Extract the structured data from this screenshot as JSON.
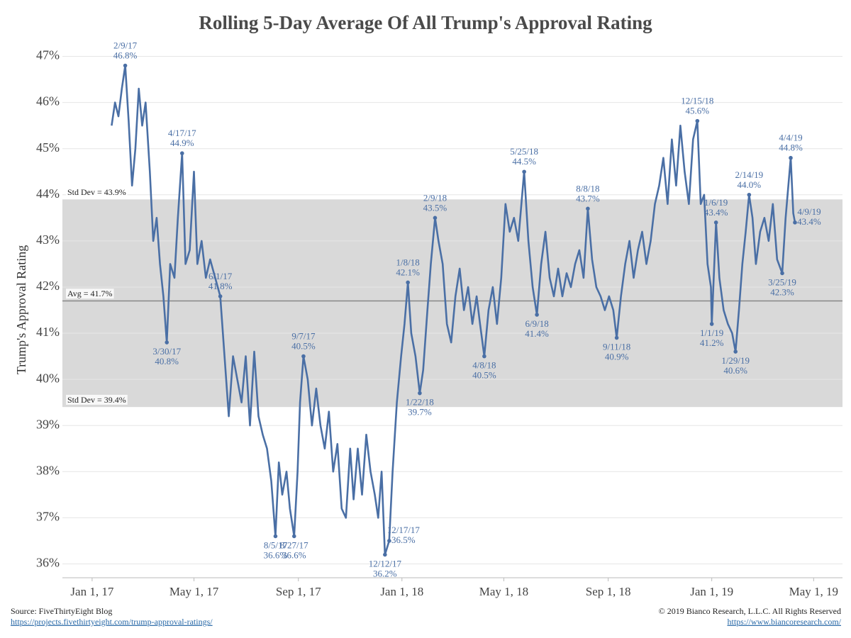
{
  "chart_data": {
    "type": "line",
    "title": "Rolling 5-Day Average Of All Trump's Approval Rating",
    "y_label": "Trump's Approval Rating",
    "color": "#4a6fa5",
    "x": [
      "2017-01-24",
      "2017-01-28",
      "2017-02-01",
      "2017-02-05",
      "2017-02-09",
      "2017-02-13",
      "2017-02-17",
      "2017-02-21",
      "2017-02-25",
      "2017-03-01",
      "2017-03-05",
      "2017-03-10",
      "2017-03-14",
      "2017-03-18",
      "2017-03-22",
      "2017-03-26",
      "2017-03-30",
      "2017-04-03",
      "2017-04-08",
      "2017-04-12",
      "2017-04-17",
      "2017-04-21",
      "2017-04-26",
      "2017-05-01",
      "2017-05-05",
      "2017-05-10",
      "2017-05-15",
      "2017-05-20",
      "2017-06-01",
      "2017-06-06",
      "2017-06-11",
      "2017-06-16",
      "2017-06-21",
      "2017-06-26",
      "2017-07-01",
      "2017-07-06",
      "2017-07-11",
      "2017-07-16",
      "2017-07-21",
      "2017-07-26",
      "2017-07-31",
      "2017-08-05",
      "2017-08-09",
      "2017-08-13",
      "2017-08-18",
      "2017-08-22",
      "2017-08-27",
      "2017-08-31",
      "2017-09-03",
      "2017-09-07",
      "2017-09-12",
      "2017-09-17",
      "2017-09-22",
      "2017-09-27",
      "2017-10-02",
      "2017-10-07",
      "2017-10-12",
      "2017-10-17",
      "2017-10-22",
      "2017-10-27",
      "2017-11-01",
      "2017-11-05",
      "2017-11-10",
      "2017-11-15",
      "2017-11-20",
      "2017-11-25",
      "2017-11-30",
      "2017-12-04",
      "2017-12-08",
      "2017-12-12",
      "2017-12-17",
      "2017-12-21",
      "2017-12-26",
      "2017-12-31",
      "2018-01-04",
      "2018-01-08",
      "2018-01-12",
      "2018-01-17",
      "2018-01-22",
      "2018-01-26",
      "2018-01-31",
      "2018-02-04",
      "2018-02-09",
      "2018-02-13",
      "2018-02-18",
      "2018-02-23",
      "2018-02-28",
      "2018-03-05",
      "2018-03-10",
      "2018-03-15",
      "2018-03-20",
      "2018-03-25",
      "2018-03-30",
      "2018-04-03",
      "2018-04-08",
      "2018-04-13",
      "2018-04-18",
      "2018-04-23",
      "2018-04-28",
      "2018-05-03",
      "2018-05-08",
      "2018-05-13",
      "2018-05-18",
      "2018-05-25",
      "2018-05-30",
      "2018-06-04",
      "2018-06-09",
      "2018-06-14",
      "2018-06-19",
      "2018-06-24",
      "2018-06-29",
      "2018-07-04",
      "2018-07-09",
      "2018-07-14",
      "2018-07-19",
      "2018-07-24",
      "2018-07-29",
      "2018-08-03",
      "2018-08-08",
      "2018-08-13",
      "2018-08-18",
      "2018-08-23",
      "2018-08-28",
      "2018-09-02",
      "2018-09-07",
      "2018-09-11",
      "2018-09-16",
      "2018-09-21",
      "2018-09-26",
      "2018-10-01",
      "2018-10-06",
      "2018-10-11",
      "2018-10-16",
      "2018-10-21",
      "2018-10-26",
      "2018-10-31",
      "2018-11-05",
      "2018-11-10",
      "2018-11-15",
      "2018-11-20",
      "2018-11-25",
      "2018-11-30",
      "2018-12-05",
      "2018-12-10",
      "2018-12-15",
      "2018-12-19",
      "2018-12-23",
      "2018-12-27",
      "2018-12-31",
      "2019-01-01",
      "2019-01-06",
      "2019-01-10",
      "2019-01-15",
      "2019-01-20",
      "2019-01-25",
      "2019-01-29",
      "2019-02-02",
      "2019-02-06",
      "2019-02-10",
      "2019-02-14",
      "2019-02-18",
      "2019-02-22",
      "2019-02-27",
      "2019-03-04",
      "2019-03-09",
      "2019-03-14",
      "2019-03-19",
      "2019-03-25",
      "2019-03-29",
      "2019-04-04",
      "2019-04-07",
      "2019-04-09"
    ],
    "values": [
      45.5,
      46.0,
      45.7,
      46.3,
      46.8,
      45.6,
      44.2,
      45.0,
      46.3,
      45.5,
      46.0,
      44.5,
      43.0,
      43.5,
      42.5,
      41.8,
      40.8,
      42.5,
      42.2,
      43.5,
      44.9,
      42.5,
      42.8,
      44.5,
      42.5,
      43.0,
      42.2,
      42.6,
      41.8,
      40.5,
      39.2,
      40.5,
      40.0,
      39.5,
      40.5,
      39.0,
      40.6,
      39.2,
      38.8,
      38.5,
      37.8,
      36.6,
      38.2,
      37.5,
      38.0,
      37.2,
      36.6,
      38.0,
      39.5,
      40.5,
      40.0,
      39.0,
      39.8,
      39.0,
      38.5,
      39.3,
      38.0,
      38.6,
      37.2,
      37.0,
      38.5,
      37.4,
      38.5,
      37.5,
      38.8,
      38.0,
      37.5,
      37.0,
      38.0,
      36.2,
      36.5,
      38.0,
      39.5,
      40.5,
      41.2,
      42.1,
      41.0,
      40.5,
      39.7,
      40.2,
      41.5,
      42.5,
      43.5,
      43.0,
      42.5,
      41.2,
      40.8,
      41.8,
      42.4,
      41.5,
      42.0,
      41.2,
      41.8,
      41.2,
      40.5,
      41.5,
      42.0,
      41.2,
      42.2,
      43.8,
      43.2,
      43.5,
      43.0,
      44.5,
      43.0,
      42.0,
      41.4,
      42.5,
      43.2,
      42.2,
      41.8,
      42.4,
      41.8,
      42.3,
      42.0,
      42.5,
      42.8,
      42.2,
      43.7,
      42.6,
      42.0,
      41.8,
      41.5,
      41.8,
      41.5,
      40.9,
      41.8,
      42.5,
      43.0,
      42.2,
      42.8,
      43.2,
      42.5,
      43.0,
      43.8,
      44.2,
      44.8,
      43.8,
      45.2,
      44.2,
      45.5,
      44.5,
      43.8,
      45.2,
      45.6,
      43.8,
      44.0,
      42.5,
      42.0,
      41.2,
      43.4,
      42.2,
      41.5,
      41.2,
      41.0,
      40.6,
      41.5,
      42.5,
      43.2,
      44.0,
      43.5,
      42.5,
      43.2,
      43.5,
      43.0,
      43.8,
      42.6,
      42.3,
      43.5,
      44.8,
      43.6,
      43.4
    ],
    "xlim": [
      "2016-11-27",
      "2019-06-04"
    ],
    "xticks": [
      {
        "value": "2017-01-01",
        "label": "Jan 1, 17"
      },
      {
        "value": "2017-05-01",
        "label": "May 1, 17"
      },
      {
        "value": "2017-09-01",
        "label": "Sep 1, 17"
      },
      {
        "value": "2018-01-01",
        "label": "Jan 1, 18"
      },
      {
        "value": "2018-05-01",
        "label": "May 1, 18"
      },
      {
        "value": "2018-09-01",
        "label": "Sep 1, 18"
      },
      {
        "value": "2019-01-01",
        "label": "Jan 1, 19"
      },
      {
        "value": "2019-05-01",
        "label": "May 1, 19"
      }
    ],
    "ylim": [
      35.7,
      47.3
    ],
    "yticks": [
      {
        "value": 36,
        "label": "36%"
      },
      {
        "value": 37,
        "label": "37%"
      },
      {
        "value": 38,
        "label": "38%"
      },
      {
        "value": 39,
        "label": "39%"
      },
      {
        "value": 40,
        "label": "40%"
      },
      {
        "value": 41,
        "label": "41%"
      },
      {
        "value": 42,
        "label": "42%"
      },
      {
        "value": 43,
        "label": "43%"
      },
      {
        "value": 44,
        "label": "44%"
      },
      {
        "value": 45,
        "label": "45%"
      },
      {
        "value": 46,
        "label": "46%"
      },
      {
        "value": 47,
        "label": "47%"
      }
    ],
    "grid": true,
    "band_color": "#d9d9d9",
    "reference_lines": [
      {
        "label": "Std Dev = 43.9%",
        "value": 43.9
      },
      {
        "label": "Avg = 41.7%",
        "value": 41.7
      },
      {
        "label": "Std Dev = 39.4%",
        "value": 39.4
      }
    ],
    "annotations": [
      {
        "label": "2/9/17",
        "value": 46.8,
        "value_label": "46.8%",
        "position": "above"
      },
      {
        "label": "3/30/17",
        "value": 40.8,
        "value_label": "40.8%",
        "position": "below"
      },
      {
        "label": "4/17/17",
        "value": 44.9,
        "value_label": "44.9%",
        "position": "above"
      },
      {
        "label": "6/1/17",
        "value": 41.8,
        "value_label": "41.8%",
        "position": "above"
      },
      {
        "label": "8/5/17",
        "value": 36.6,
        "value_label": "36.6%",
        "position": "below"
      },
      {
        "label": "8/27/17",
        "value": 36.6,
        "value_label": "36.6%",
        "position": "below"
      },
      {
        "label": "9/7/17",
        "value": 40.5,
        "value_label": "40.5%",
        "position": "above"
      },
      {
        "label": "12/12/17",
        "value": 36.2,
        "value_label": "36.2%",
        "position": "below"
      },
      {
        "label": "12/17/17",
        "value": 36.5,
        "value_label": "36.5%",
        "position": "right"
      },
      {
        "label": "1/8/18",
        "value": 42.1,
        "value_label": "42.1%",
        "position": "above"
      },
      {
        "label": "1/22/18",
        "value": 39.7,
        "value_label": "39.7%",
        "position": "below"
      },
      {
        "label": "2/9/18",
        "value": 43.5,
        "value_label": "43.5%",
        "position": "above"
      },
      {
        "label": "4/8/18",
        "value": 40.5,
        "value_label": "40.5%",
        "position": "below"
      },
      {
        "label": "5/25/18",
        "value": 44.5,
        "value_label": "44.5%",
        "position": "above"
      },
      {
        "label": "6/9/18",
        "value": 41.4,
        "value_label": "41.4%",
        "position": "below"
      },
      {
        "label": "8/8/18",
        "value": 43.7,
        "value_label": "43.7%",
        "position": "above"
      },
      {
        "label": "9/11/18",
        "value": 40.9,
        "value_label": "40.9%",
        "position": "below"
      },
      {
        "label": "12/15/18",
        "value": 45.6,
        "value_label": "45.6%",
        "position": "above"
      },
      {
        "label": "1/1/19",
        "value": 41.2,
        "value_label": "41.2%",
        "position": "below"
      },
      {
        "label": "1/6/19",
        "value": 43.4,
        "value_label": "43.4%",
        "position": "above"
      },
      {
        "label": "1/29/19",
        "value": 40.6,
        "value_label": "40.6%",
        "position": "below"
      },
      {
        "label": "2/14/19",
        "value": 44,
        "value_label": "44.0%",
        "position": "above"
      },
      {
        "label": "3/25/19",
        "value": 42.3,
        "value_label": "42.3%",
        "position": "below"
      },
      {
        "label": "4/4/19",
        "value": 44.8,
        "value_label": "44.8%",
        "position": "above"
      },
      {
        "label": "4/9/19",
        "value": 43.4,
        "value_label": "43.4%",
        "position": "right"
      }
    ],
    "source": "Source: FiveThirtyEight Blog",
    "source_url": "https://projects.fivethirtyeight.com/trump-approval-ratings/",
    "copyright": "© 2019 Bianco Research, L.L.C. All Rights Reserved",
    "copyright_url": "https://www.biancoresearch.com/"
  }
}
